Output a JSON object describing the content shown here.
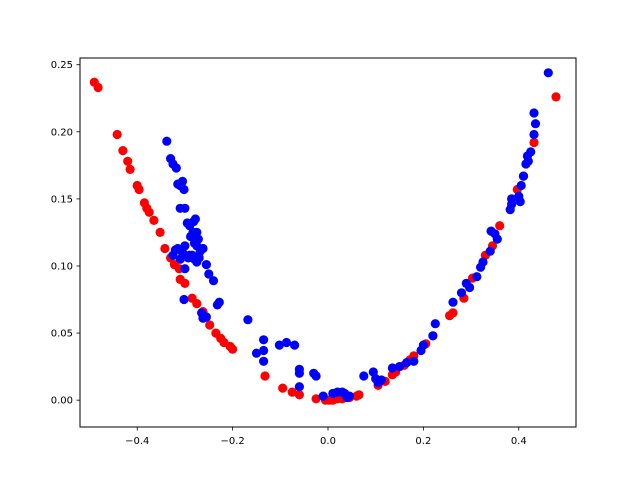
{
  "chart_data": {
    "type": "scatter",
    "title": "",
    "xlabel": "",
    "ylabel": "",
    "xlim": [
      -0.52,
      0.52
    ],
    "ylim": [
      -0.02,
      0.255
    ],
    "grid": false,
    "x_ticks": [
      {
        "value": -0.4,
        "label": "−0.4"
      },
      {
        "value": -0.2,
        "label": "−0.2"
      },
      {
        "value": 0.0,
        "label": "0.0"
      },
      {
        "value": 0.2,
        "label": "0.2"
      },
      {
        "value": 0.4,
        "label": "0.4"
      }
    ],
    "y_ticks": [
      {
        "value": 0.0,
        "label": "0.00"
      },
      {
        "value": 0.05,
        "label": "0.05"
      },
      {
        "value": 0.1,
        "label": "0.10"
      },
      {
        "value": 0.15,
        "label": "0.15"
      },
      {
        "value": 0.2,
        "label": "0.20"
      },
      {
        "value": 0.25,
        "label": "0.25"
      }
    ],
    "series": [
      {
        "color": "#ff0000",
        "points": [
          [
            -0.49,
            0.237
          ],
          [
            -0.482,
            0.233
          ],
          [
            -0.442,
            0.198
          ],
          [
            -0.43,
            0.186
          ],
          [
            -0.42,
            0.178
          ],
          [
            -0.415,
            0.172
          ],
          [
            -0.4,
            0.16
          ],
          [
            -0.396,
            0.157
          ],
          [
            -0.385,
            0.147
          ],
          [
            -0.38,
            0.143
          ],
          [
            -0.375,
            0.14
          ],
          [
            -0.365,
            0.134
          ],
          [
            -0.352,
            0.125
          ],
          [
            -0.342,
            0.113
          ],
          [
            -0.33,
            0.106
          ],
          [
            -0.322,
            0.101
          ],
          [
            -0.312,
            0.098
          ],
          [
            -0.31,
            0.09
          ],
          [
            -0.3,
            0.087
          ],
          [
            -0.285,
            0.076
          ],
          [
            -0.275,
            0.072
          ],
          [
            -0.262,
            0.066
          ],
          [
            -0.248,
            0.056
          ],
          [
            -0.235,
            0.05
          ],
          [
            -0.225,
            0.046
          ],
          [
            -0.218,
            0.043
          ],
          [
            -0.205,
            0.04
          ],
          [
            -0.2,
            0.038
          ],
          [
            -0.132,
            0.018
          ],
          [
            -0.095,
            0.009
          ],
          [
            -0.075,
            0.006
          ],
          [
            -0.06,
            0.004
          ],
          [
            -0.025,
            0.001
          ],
          [
            -0.005,
            0.0
          ],
          [
            0.002,
            0.0
          ],
          [
            0.01,
            0.0
          ],
          [
            0.02,
            0.001
          ],
          [
            0.03,
            0.001
          ],
          [
            0.045,
            0.002
          ],
          [
            0.06,
            0.003
          ],
          [
            0.065,
            0.004
          ],
          [
            0.105,
            0.011
          ],
          [
            0.12,
            0.014
          ],
          [
            0.135,
            0.019
          ],
          [
            0.142,
            0.021
          ],
          [
            0.16,
            0.026
          ],
          [
            0.172,
            0.03
          ],
          [
            0.18,
            0.033
          ],
          [
            0.205,
            0.042
          ],
          [
            0.22,
            0.048
          ],
          [
            0.255,
            0.063
          ],
          [
            0.262,
            0.065
          ],
          [
            0.285,
            0.076
          ],
          [
            0.303,
            0.091
          ],
          [
            0.33,
            0.108
          ],
          [
            0.345,
            0.115
          ],
          [
            0.36,
            0.13
          ],
          [
            0.397,
            0.157
          ],
          [
            0.41,
            0.167
          ],
          [
            0.432,
            0.192
          ],
          [
            0.478,
            0.226
          ]
        ]
      },
      {
        "color": "#0000ff",
        "points": [
          [
            -0.338,
            0.193
          ],
          [
            -0.33,
            0.18
          ],
          [
            -0.325,
            0.176
          ],
          [
            -0.318,
            0.173
          ],
          [
            -0.315,
            0.161
          ],
          [
            -0.31,
            0.16
          ],
          [
            -0.305,
            0.163
          ],
          [
            -0.302,
            0.157
          ],
          [
            -0.31,
            0.143
          ],
          [
            -0.3,
            0.143
          ],
          [
            -0.295,
            0.132
          ],
          [
            -0.29,
            0.13
          ],
          [
            -0.282,
            0.133
          ],
          [
            -0.278,
            0.135
          ],
          [
            -0.288,
            0.122
          ],
          [
            -0.283,
            0.125
          ],
          [
            -0.275,
            0.125
          ],
          [
            -0.272,
            0.12
          ],
          [
            -0.28,
            0.117
          ],
          [
            -0.275,
            0.115
          ],
          [
            -0.268,
            0.111
          ],
          [
            -0.262,
            0.113
          ],
          [
            -0.325,
            0.108
          ],
          [
            -0.32,
            0.112
          ],
          [
            -0.315,
            0.113
          ],
          [
            -0.31,
            0.105
          ],
          [
            -0.305,
            0.11
          ],
          [
            -0.3,
            0.115
          ],
          [
            -0.3,
            0.108
          ],
          [
            -0.3,
            0.098
          ],
          [
            -0.293,
            0.106
          ],
          [
            -0.29,
            0.108
          ],
          [
            -0.285,
            0.108
          ],
          [
            -0.28,
            0.105
          ],
          [
            -0.275,
            0.103
          ],
          [
            -0.27,
            0.106
          ],
          [
            -0.255,
            0.101
          ],
          [
            -0.25,
            0.094
          ],
          [
            -0.24,
            0.089
          ],
          [
            -0.302,
            0.075
          ],
          [
            -0.265,
            0.065
          ],
          [
            -0.262,
            0.061
          ],
          [
            -0.255,
            0.062
          ],
          [
            -0.232,
            0.071
          ],
          [
            -0.228,
            0.073
          ],
          [
            -0.168,
            0.06
          ],
          [
            -0.15,
            0.035
          ],
          [
            -0.135,
            0.045
          ],
          [
            -0.135,
            0.037
          ],
          [
            -0.135,
            0.029
          ],
          [
            -0.102,
            0.041
          ],
          [
            -0.087,
            0.043
          ],
          [
            -0.07,
            0.041
          ],
          [
            -0.06,
            0.023
          ],
          [
            -0.06,
            0.02
          ],
          [
            -0.06,
            0.01
          ],
          [
            -0.03,
            0.02
          ],
          [
            -0.025,
            0.018
          ],
          [
            -0.01,
            0.003
          ],
          [
            0.01,
            0.005
          ],
          [
            0.02,
            0.006
          ],
          [
            0.03,
            0.006
          ],
          [
            0.035,
            0.005
          ],
          [
            0.045,
            0.003
          ],
          [
            0.04,
            0.002
          ],
          [
            0.075,
            0.018
          ],
          [
            0.095,
            0.021
          ],
          [
            0.1,
            0.016
          ],
          [
            0.105,
            0.013
          ],
          [
            0.112,
            0.015
          ],
          [
            0.135,
            0.024
          ],
          [
            0.15,
            0.025
          ],
          [
            0.165,
            0.028
          ],
          [
            0.18,
            0.029
          ],
          [
            0.195,
            0.037
          ],
          [
            0.2,
            0.041
          ],
          [
            0.22,
            0.048
          ],
          [
            0.225,
            0.057
          ],
          [
            0.262,
            0.073
          ],
          [
            0.28,
            0.08
          ],
          [
            0.29,
            0.087
          ],
          [
            0.297,
            0.084
          ],
          [
            0.312,
            0.092
          ],
          [
            0.32,
            0.099
          ],
          [
            0.325,
            0.103
          ],
          [
            0.34,
            0.111
          ],
          [
            0.342,
            0.126
          ],
          [
            0.35,
            0.124
          ],
          [
            0.355,
            0.12
          ],
          [
            0.382,
            0.142
          ],
          [
            0.385,
            0.146
          ],
          [
            0.385,
            0.15
          ],
          [
            0.4,
            0.152
          ],
          [
            0.403,
            0.148
          ],
          [
            0.405,
            0.16
          ],
          [
            0.41,
            0.167
          ],
          [
            0.415,
            0.176
          ],
          [
            0.418,
            0.182
          ],
          [
            0.42,
            0.178
          ],
          [
            0.425,
            0.185
          ],
          [
            0.432,
            0.198
          ],
          [
            0.435,
            0.206
          ],
          [
            0.432,
            0.214
          ],
          [
            0.462,
            0.244
          ]
        ]
      }
    ]
  }
}
